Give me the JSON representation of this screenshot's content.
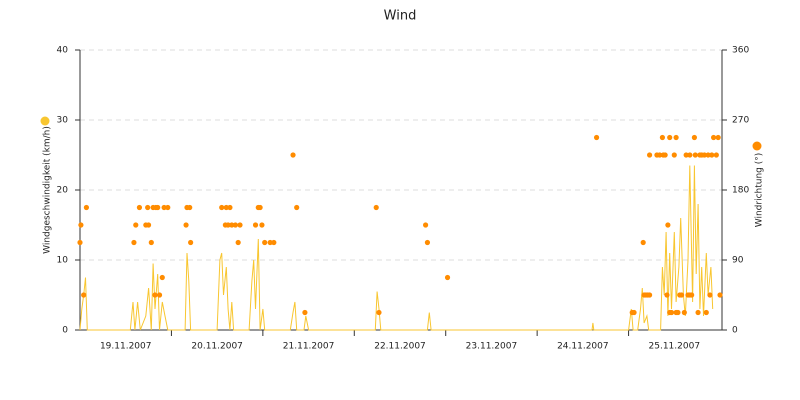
{
  "chart_data": {
    "type": "line-scatter",
    "title": "Wind",
    "y_label": "Windgeschwindigkeit (km/h)",
    "y2_label": "Windrichtung (°)",
    "categories": [
      "19.11.2007",
      "20.11.2007",
      "21.11.2007",
      "22.11.2007",
      "23.11.2007",
      "24.11.2007",
      "25.11.2007"
    ],
    "xlim": [
      0,
      7
    ],
    "ylim": [
      0,
      40
    ],
    "yticks": [
      0,
      10,
      20,
      30,
      40
    ],
    "y2lim": [
      0,
      360
    ],
    "y2ticks": [
      0,
      90,
      180,
      270,
      360
    ],
    "grid": true,
    "series": [
      {
        "type": "line",
        "color": "#f8c630",
        "x": [
          0,
          0.02,
          0.04,
          0.06,
          0.08,
          0.55,
          0.58,
          0.6,
          0.63,
          0.66,
          0.72,
          0.75,
          0.78,
          0.8,
          0.82,
          0.85,
          0.87,
          0.9,
          0.93,
          0.96,
          1.15,
          1.17,
          1.19,
          1.21,
          1.5,
          1.53,
          1.55,
          1.57,
          1.6,
          1.62,
          1.64,
          1.66,
          1.68,
          1.85,
          1.88,
          1.9,
          1.92,
          1.95,
          1.97,
          2.0,
          2.02,
          2.3,
          2.33,
          2.35,
          2.37,
          2.45,
          2.47,
          2.5,
          3.23,
          3.25,
          3.27,
          3.29,
          3.8,
          3.82,
          3.84,
          5.6,
          5.61,
          5.62,
          6.0,
          6.03,
          6.05,
          6.1,
          6.13,
          6.15,
          6.17,
          6.2,
          6.22,
          6.35,
          6.37,
          6.39,
          6.41,
          6.43,
          6.45,
          6.47,
          6.5,
          6.52,
          6.55,
          6.57,
          6.6,
          6.62,
          6.65,
          6.67,
          6.7,
          6.72,
          6.74,
          6.76,
          6.78,
          6.8,
          6.82,
          6.85,
          6.87,
          6.9,
          6.92
        ],
        "values": [
          0,
          3,
          5,
          7.5,
          0,
          0,
          4,
          0,
          4,
          0,
          2,
          6,
          0,
          9.5,
          3,
          8,
          0,
          4,
          2,
          0,
          0,
          11,
          7,
          0,
          0,
          10,
          11,
          5,
          9,
          3,
          0,
          4,
          0,
          0,
          7,
          10,
          3,
          13,
          0,
          3,
          0,
          0,
          2.5,
          4,
          0,
          0,
          2,
          0,
          0,
          5.5,
          3,
          0,
          0,
          2.5,
          0,
          0,
          1,
          0,
          0,
          3,
          0,
          0,
          3,
          6,
          1,
          2,
          0,
          0,
          9,
          5,
          14,
          2,
          11,
          3,
          14,
          4,
          9,
          16,
          5,
          2,
          10,
          23.5,
          4,
          23.5,
          8,
          18,
          3,
          9,
          2,
          11,
          5,
          9,
          3
        ]
      },
      {
        "type": "scatter",
        "axis": "y2",
        "color": "#ff8c00",
        "x": [
          0,
          0.01,
          0.04,
          0.07,
          0.59,
          0.61,
          0.65,
          0.72,
          0.74,
          0.75,
          0.78,
          0.8,
          0.82,
          0.83,
          0.85,
          0.87,
          0.9,
          0.92,
          0.96,
          1.16,
          1.17,
          1.2,
          1.21,
          1.55,
          1.59,
          1.6,
          1.62,
          1.64,
          1.66,
          1.7,
          1.73,
          1.75,
          1.92,
          1.95,
          1.97,
          1.99,
          2.02,
          2.08,
          2.12,
          2.33,
          2.37,
          2.46,
          3.24,
          3.27,
          3.78,
          3.8,
          4.02,
          5.65,
          6.04,
          6.06,
          6.16,
          6.17,
          6.19,
          6.21,
          6.23,
          6.23,
          6.31,
          6.34,
          6.37,
          6.38,
          6.4,
          6.42,
          6.43,
          6.45,
          6.45,
          6.47,
          6.5,
          6.52,
          6.52,
          6.54,
          6.56,
          6.58,
          6.61,
          6.63,
          6.65,
          6.67,
          6.67,
          6.69,
          6.72,
          6.73,
          6.76,
          6.78,
          6.8,
          6.83,
          6.85,
          6.87,
          6.89,
          6.91,
          6.93,
          6.96,
          6.98,
          7.0
        ],
        "values": [
          112.5,
          135,
          45,
          157.5,
          112.5,
          135,
          157.5,
          135,
          157.5,
          135,
          112.5,
          157.5,
          45,
          157.5,
          157.5,
          45,
          67.5,
          157.5,
          157.5,
          135,
          157.5,
          157.5,
          112.5,
          157.5,
          135,
          157.5,
          135,
          157.5,
          135,
          135,
          112.5,
          135,
          135,
          157.5,
          157.5,
          135,
          112.5,
          112.5,
          112.5,
          225,
          157.5,
          22.5,
          157.5,
          22.5,
          135,
          112.5,
          67.5,
          247.5,
          22.5,
          22.5,
          112.5,
          45,
          45,
          45,
          45,
          225,
          225,
          225,
          247.5,
          225,
          225,
          45,
          135,
          247.5,
          22.5,
          22.5,
          225,
          247.5,
          22.5,
          22.5,
          45,
          45,
          22.5,
          225,
          45,
          225,
          45,
          45,
          247.5,
          225,
          22.5,
          225,
          225,
          225,
          22.5,
          225,
          45,
          225,
          247.5,
          225,
          247.5,
          45
        ]
      }
    ]
  }
}
